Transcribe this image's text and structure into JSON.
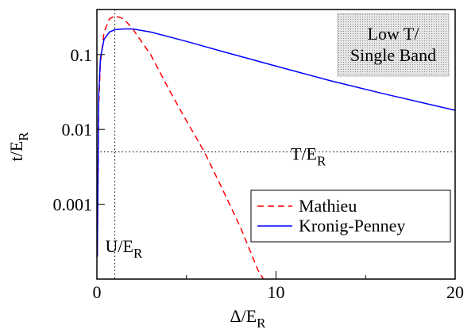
{
  "chart_data": {
    "type": "line",
    "xlabel": {
      "text": "Δ/E",
      "sub": "R"
    },
    "ylabel": {
      "text": "t/E",
      "sub": "R"
    },
    "xlim": [
      0,
      20
    ],
    "xticks": [
      0,
      10,
      20
    ],
    "xminor_ticks": [
      5,
      15
    ],
    "ylim": [
      0.0001,
      0.4
    ],
    "yticks": [
      0.001,
      0.01,
      0.1
    ],
    "log_y": true,
    "legend_position": "lower right",
    "series": [
      {
        "name": "Mathieu",
        "color": "#ff0000",
        "dashed": true,
        "x": [
          0.02,
          0.1,
          0.2,
          0.4,
          0.7,
          1,
          1.5,
          2,
          3,
          4,
          5,
          6,
          7,
          8,
          9,
          9.3
        ],
        "values": [
          0.0002,
          0.02,
          0.08,
          0.2,
          0.3,
          0.33,
          0.3,
          0.22,
          0.1,
          0.035,
          0.013,
          0.005,
          0.0016,
          0.0005,
          0.00013,
          0.0001
        ]
      },
      {
        "name": "Kronig-Penney",
        "color": "#0000ff",
        "dashed": false,
        "x": [
          0.02,
          0.1,
          0.2,
          0.4,
          0.7,
          1,
          1.5,
          2,
          3,
          5,
          7,
          10,
          13,
          16,
          20
        ],
        "values": [
          0.0002,
          0.03,
          0.09,
          0.16,
          0.2,
          0.215,
          0.22,
          0.22,
          0.2,
          0.15,
          0.11,
          0.07,
          0.045,
          0.03,
          0.018
        ]
      }
    ],
    "reference_lines": [
      {
        "axis": "x",
        "value": 1,
        "label": {
          "text": "U/E",
          "sub": "R"
        }
      },
      {
        "axis": "y",
        "value": 0.005,
        "label": {
          "text": "T/E",
          "sub": "R"
        }
      }
    ],
    "annotation": [
      "Low T/",
      "Single Band"
    ]
  }
}
